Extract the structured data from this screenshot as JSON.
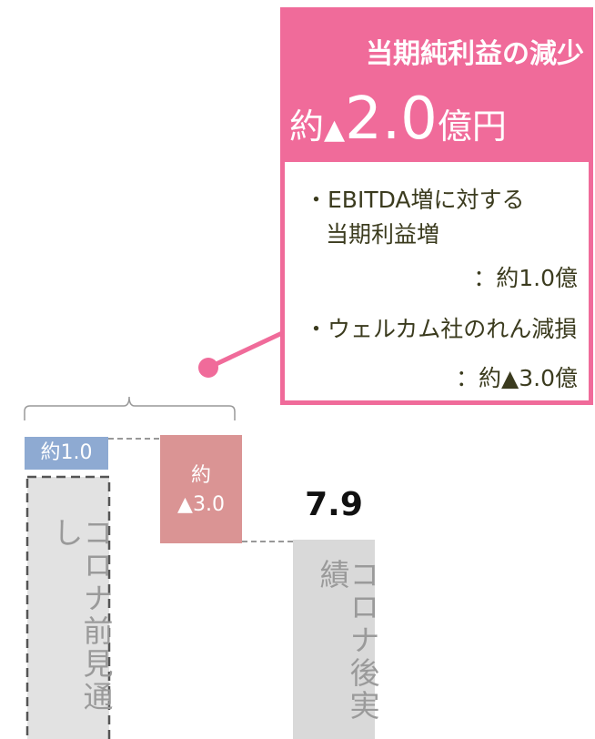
{
  "callout": {
    "title": "当期純利益の減少",
    "amount": {
      "prefix": "約",
      "sign": "▲",
      "number": "2.0",
      "unit": "億円"
    },
    "lines": [
      "・EBITDA増に対する",
      "当期利益増",
      "：約1.0億",
      "・ウェルカム社のれん減損",
      "：約▲3.0億"
    ]
  },
  "bars": [
    {
      "label": "約1.0",
      "caption": "コロナ前見通し"
    },
    {
      "label_lines": [
        "約",
        "▲3.0"
      ]
    },
    {
      "label": "7.9",
      "caption": "コロナ後実績"
    }
  ]
}
